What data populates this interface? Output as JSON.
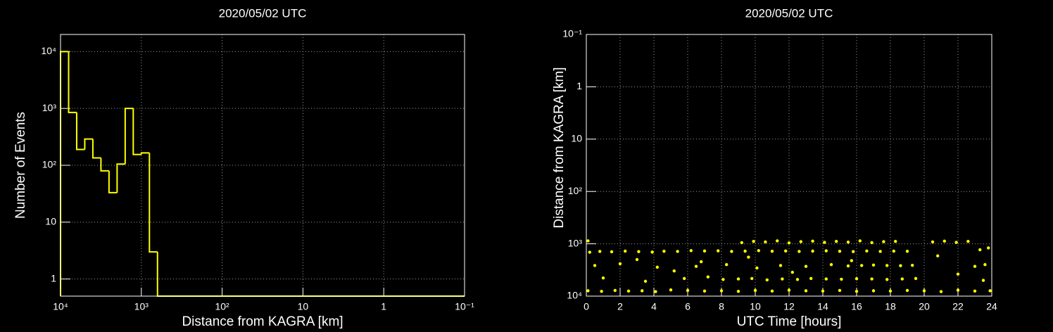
{
  "chart_data": [
    {
      "type": "histogram",
      "title": "2020/05/02 UTC",
      "x_label": "Distance from KAGRA [km]",
      "y_label": "Number of Events",
      "bins": [
        10000,
        7943,
        6310,
        5012,
        3981,
        3162,
        2512,
        1995,
        1585,
        1259,
        1000,
        794,
        631,
        0.1
      ],
      "values": [
        10000,
        850,
        190,
        290,
        135,
        80,
        33,
        105,
        1000,
        155,
        165,
        3,
        0
      ],
      "color": "#ffff00",
      "xlog": true,
      "ylog": true,
      "grid": true,
      "xlim": [
        10000,
        0.1
      ],
      "ylim": [
        0.5,
        20000
      ],
      "xticks": [
        {
          "value": 10000,
          "label": "10⁴"
        },
        {
          "value": 1000,
          "label": "10³"
        },
        {
          "value": 100,
          "label": "10²"
        },
        10,
        1,
        {
          "value": 0.1,
          "label": "10⁻¹"
        }
      ],
      "yticks": [
        1,
        10,
        {
          "value": 100,
          "label": "10²"
        },
        {
          "value": 1000,
          "label": "10³"
        },
        {
          "value": 10000,
          "label": "10⁴"
        }
      ]
    },
    {
      "type": "scatter",
      "title": "2020/05/02 UTC",
      "x_label": "UTC Time [hours]",
      "y_label": "Distance from KAGRA [km]",
      "color": "#ffff00",
      "xlog": false,
      "ylog": true,
      "grid": true,
      "xlim": [
        0,
        24
      ],
      "ylim": [
        10000,
        0.1
      ],
      "xticks": [
        0,
        2,
        4,
        6,
        8,
        10,
        12,
        14,
        16,
        18,
        20,
        22,
        24
      ],
      "yticks": [
        {
          "value": 10000,
          "label": "10⁴"
        },
        {
          "value": 1000,
          "label": "10³"
        },
        {
          "value": 100,
          "label": "10²"
        },
        10,
        1,
        {
          "value": 0.1,
          "label": "10⁻¹"
        }
      ],
      "x": [
        0.2,
        0.8,
        1.5,
        2.3,
        3.1,
        3.9,
        4.6,
        5.4,
        6.2,
        7.0,
        7.8,
        8.6,
        9.4,
        10.2,
        11.0,
        11.8,
        12.6,
        13.4,
        14.2,
        15.0,
        15.8,
        16.6,
        17.4,
        18.2,
        19.0,
        0.1,
        9.2,
        9.9,
        10.6,
        11.3,
        12.0,
        12.7,
        13.4,
        14.1,
        14.8,
        15.5,
        16.2,
        16.9,
        17.6,
        18.3,
        20.5,
        21.2,
        21.9,
        22.6,
        23.3,
        0.5,
        2.0,
        4.2,
        6.5,
        8.3,
        10.1,
        11.5,
        13.0,
        14.5,
        15.5,
        16.3,
        17.0,
        17.8,
        18.6,
        19.3,
        23.0,
        23.6,
        1.0,
        3.5,
        5.8,
        7.2,
        8.1,
        9.0,
        9.8,
        10.7,
        11.6,
        12.5,
        13.3,
        14.2,
        15.1,
        16.0,
        16.9,
        17.8,
        18.7,
        19.5,
        22.0,
        23.5,
        0.1,
        0.9,
        1.7,
        2.5,
        3.3,
        4.1,
        5.0,
        6.0,
        7.0,
        8.0,
        9.0,
        10.0,
        11.0,
        12.0,
        13.0,
        14.0,
        15.0,
        16.0,
        17.0,
        18.0,
        19.0,
        20.0,
        21.0,
        22.0,
        23.0,
        23.9,
        3.0,
        5.2,
        6.8,
        9.6,
        12.2,
        15.7,
        20.8,
        23.8
      ],
      "values": [
        1450,
        1400,
        1420,
        1380,
        1410,
        1440,
        1390,
        1400,
        1350,
        1370,
        1360,
        1400,
        1380,
        1350,
        1390,
        1370,
        1400,
        1380,
        1360,
        1390,
        1410,
        1370,
        1400,
        1380,
        1390,
        880,
        950,
        900,
        920,
        880,
        960,
        910,
        890,
        940,
        900,
        930,
        880,
        950,
        910,
        900,
        920,
        890,
        940,
        900,
        1300,
        2600,
        2400,
        2800,
        2700,
        2500,
        2900,
        2600,
        2700,
        2500,
        2650,
        2600,
        2550,
        2600,
        2620,
        2580,
        2700,
        2500,
        4500,
        5200,
        4600,
        4300,
        4800,
        4700,
        4600,
        4900,
        4700,
        4800,
        4600,
        4700,
        4750,
        4650,
        4700,
        4800,
        4700,
        4600,
        3800,
        5000,
        7900,
        8100,
        7800,
        8000,
        7900,
        8200,
        7600,
        7800,
        8000,
        7900,
        8100,
        7800,
        8000,
        7700,
        7900,
        8000,
        7800,
        8100,
        7900,
        8000,
        7800,
        7900,
        8200,
        7700,
        8000,
        7900,
        2000,
        3300,
        2200,
        1800,
        3500,
        2100,
        1700,
        1200
      ]
    }
  ]
}
